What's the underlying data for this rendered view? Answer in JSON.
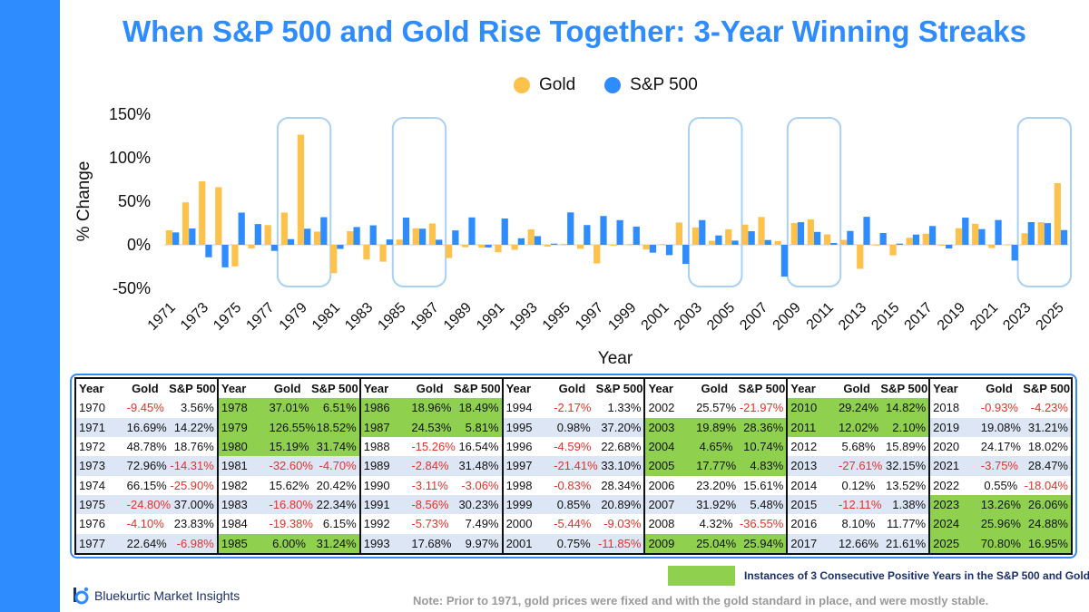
{
  "title": "When S&P 500 and Gold Rise Together: 3-Year Winning Streaks",
  "colors": {
    "gold": "#fcc24c",
    "sp500": "#2f8cff",
    "highlight": "#8fd14f",
    "negative": "#e8302a",
    "accent": "#2f8cff"
  },
  "chart_data": {
    "type": "bar",
    "title": "When S&P 500 and Gold Rise Together: 3-Year Winning Streaks",
    "xlabel": "Year",
    "ylabel": "% Change",
    "ylim": [
      -50,
      150
    ],
    "yticks": [
      "150%",
      "100%",
      "50%",
      "0%",
      "-50%"
    ],
    "ytick_values": [
      150,
      100,
      50,
      0,
      -50
    ],
    "xtick_labels": [
      "1971",
      "1973",
      "1975",
      "1977",
      "1979",
      "1981",
      "1983",
      "1985",
      "1987",
      "1989",
      "1991",
      "1993",
      "1995",
      "1997",
      "1999",
      "2001",
      "2003",
      "2005",
      "2007",
      "2009",
      "2011",
      "2013",
      "2015",
      "2017",
      "2019",
      "2021",
      "2023",
      "2025"
    ],
    "legend": [
      "Gold",
      "S&P 500"
    ],
    "legend_position": "top-center",
    "streak_windows": [
      [
        1978,
        1980
      ],
      [
        1985,
        1987
      ],
      [
        2003,
        2005
      ],
      [
        2009,
        2011
      ],
      [
        2023,
        2025
      ]
    ],
    "categories": [
      1971,
      1972,
      1973,
      1974,
      1975,
      1976,
      1977,
      1978,
      1979,
      1980,
      1981,
      1982,
      1983,
      1984,
      1985,
      1986,
      1987,
      1988,
      1989,
      1990,
      1991,
      1992,
      1993,
      1994,
      1995,
      1996,
      1997,
      1998,
      1999,
      2000,
      2001,
      2002,
      2003,
      2004,
      2005,
      2006,
      2007,
      2008,
      2009,
      2010,
      2011,
      2012,
      2013,
      2014,
      2015,
      2016,
      2017,
      2018,
      2019,
      2020,
      2021,
      2022,
      2023,
      2024,
      2025
    ],
    "series": [
      {
        "name": "Gold",
        "values": [
          16.69,
          48.78,
          72.96,
          66.15,
          -24.8,
          -4.1,
          22.64,
          37.01,
          126.55,
          15.19,
          -32.6,
          15.62,
          -16.8,
          -19.38,
          6.0,
          18.96,
          24.53,
          -15.26,
          -2.84,
          -3.11,
          -8.56,
          -5.73,
          17.68,
          -2.17,
          0.98,
          -4.59,
          -21.41,
          -0.83,
          0.85,
          -5.44,
          0.75,
          25.57,
          19.89,
          4.65,
          17.77,
          23.2,
          31.92,
          4.32,
          25.04,
          29.24,
          12.02,
          5.68,
          -27.61,
          0.12,
          -12.11,
          8.1,
          12.66,
          -0.93,
          19.08,
          24.17,
          -3.75,
          0.55,
          13.26,
          25.96,
          70.8
        ]
      },
      {
        "name": "S&P 500",
        "values": [
          14.22,
          18.76,
          -14.31,
          -25.9,
          37.0,
          23.83,
          -6.98,
          6.51,
          18.52,
          31.74,
          -4.7,
          20.42,
          22.34,
          6.15,
          31.24,
          18.49,
          5.81,
          16.54,
          31.48,
          -3.06,
          30.23,
          7.49,
          9.97,
          1.33,
          37.2,
          22.68,
          33.1,
          28.34,
          20.89,
          -9.03,
          -11.85,
          -21.97,
          28.36,
          10.74,
          4.83,
          15.61,
          5.48,
          -36.55,
          25.94,
          14.82,
          2.1,
          15.89,
          32.15,
          13.52,
          1.38,
          11.77,
          21.61,
          -4.23,
          31.21,
          18.02,
          28.47,
          -18.04,
          26.06,
          24.88,
          16.95
        ]
      }
    ]
  },
  "table": {
    "headers": [
      "Year",
      "Gold",
      "S&P 500"
    ],
    "groups": [
      {
        "rows": [
          {
            "year": "1970",
            "gold": "-9.45%",
            "sp": "3.56%"
          },
          {
            "year": "1971",
            "gold": "16.69%",
            "sp": "14.22%"
          },
          {
            "year": "1972",
            "gold": "48.78%",
            "sp": "18.76%"
          },
          {
            "year": "1973",
            "gold": "72.96%",
            "sp": "-14.31%"
          },
          {
            "year": "1974",
            "gold": "66.15%",
            "sp": "-25.90%"
          },
          {
            "year": "1975",
            "gold": "-24.80%",
            "sp": "37.00%"
          },
          {
            "year": "1976",
            "gold": "-4.10%",
            "sp": "23.83%"
          },
          {
            "year": "1977",
            "gold": "22.64%",
            "sp": "-6.98%"
          }
        ]
      },
      {
        "rows": [
          {
            "year": "1978",
            "gold": "37.01%",
            "sp": "6.51%",
            "hl": true
          },
          {
            "year": "1979",
            "gold": "126.55%",
            "sp": "18.52%",
            "hl": true
          },
          {
            "year": "1980",
            "gold": "15.19%",
            "sp": "31.74%",
            "hl": true
          },
          {
            "year": "1981",
            "gold": "-32.60%",
            "sp": "-4.70%"
          },
          {
            "year": "1982",
            "gold": "15.62%",
            "sp": "20.42%"
          },
          {
            "year": "1983",
            "gold": "-16.80%",
            "sp": "22.34%"
          },
          {
            "year": "1984",
            "gold": "-19.38%",
            "sp": "6.15%"
          },
          {
            "year": "1985",
            "gold": "6.00%",
            "sp": "31.24%",
            "hl": true
          }
        ]
      },
      {
        "rows": [
          {
            "year": "1986",
            "gold": "18.96%",
            "sp": "18.49%",
            "hl": true
          },
          {
            "year": "1987",
            "gold": "24.53%",
            "sp": "5.81%",
            "hl": true
          },
          {
            "year": "1988",
            "gold": "-15.26%",
            "sp": "16.54%"
          },
          {
            "year": "1989",
            "gold": "-2.84%",
            "sp": "31.48%"
          },
          {
            "year": "1990",
            "gold": "-3.11%",
            "sp": "-3.06%"
          },
          {
            "year": "1991",
            "gold": "-8.56%",
            "sp": "30.23%"
          },
          {
            "year": "1992",
            "gold": "-5.73%",
            "sp": "7.49%"
          },
          {
            "year": "1993",
            "gold": "17.68%",
            "sp": "9.97%"
          }
        ]
      },
      {
        "rows": [
          {
            "year": "1994",
            "gold": "-2.17%",
            "sp": "1.33%"
          },
          {
            "year": "1995",
            "gold": "0.98%",
            "sp": "37.20%"
          },
          {
            "year": "1996",
            "gold": "-4.59%",
            "sp": "22.68%"
          },
          {
            "year": "1997",
            "gold": "-21.41%",
            "sp": "33.10%"
          },
          {
            "year": "1998",
            "gold": "-0.83%",
            "sp": "28.34%"
          },
          {
            "year": "1999",
            "gold": "0.85%",
            "sp": "20.89%"
          },
          {
            "year": "2000",
            "gold": "-5.44%",
            "sp": "-9.03%"
          },
          {
            "year": "2001",
            "gold": "0.75%",
            "sp": "-11.85%"
          }
        ]
      },
      {
        "rows": [
          {
            "year": "2002",
            "gold": "25.57%",
            "sp": "-21.97%"
          },
          {
            "year": "2003",
            "gold": "19.89%",
            "sp": "28.36%",
            "hl": true
          },
          {
            "year": "2004",
            "gold": "4.65%",
            "sp": "10.74%",
            "hl": true
          },
          {
            "year": "2005",
            "gold": "17.77%",
            "sp": "4.83%",
            "hl": true
          },
          {
            "year": "2006",
            "gold": "23.20%",
            "sp": "15.61%"
          },
          {
            "year": "2007",
            "gold": "31.92%",
            "sp": "5.48%"
          },
          {
            "year": "2008",
            "gold": "4.32%",
            "sp": "-36.55%"
          },
          {
            "year": "2009",
            "gold": "25.04%",
            "sp": "25.94%",
            "hl": true
          }
        ]
      },
      {
        "rows": [
          {
            "year": "2010",
            "gold": "29.24%",
            "sp": "14.82%",
            "hl": true
          },
          {
            "year": "2011",
            "gold": "12.02%",
            "sp": "2.10%",
            "hl": true
          },
          {
            "year": "2012",
            "gold": "5.68%",
            "sp": "15.89%"
          },
          {
            "year": "2013",
            "gold": "-27.61%",
            "sp": "32.15%"
          },
          {
            "year": "2014",
            "gold": "0.12%",
            "sp": "13.52%"
          },
          {
            "year": "2015",
            "gold": "-12.11%",
            "sp": "1.38%"
          },
          {
            "year": "2016",
            "gold": "8.10%",
            "sp": "11.77%"
          },
          {
            "year": "2017",
            "gold": "12.66%",
            "sp": "21.61%"
          }
        ]
      },
      {
        "rows": [
          {
            "year": "2018",
            "gold": "-0.93%",
            "sp": "-4.23%"
          },
          {
            "year": "2019",
            "gold": "19.08%",
            "sp": "31.21%"
          },
          {
            "year": "2020",
            "gold": "24.17%",
            "sp": "18.02%"
          },
          {
            "year": "2021",
            "gold": "-3.75%",
            "sp": "28.47%"
          },
          {
            "year": "2022",
            "gold": "0.55%",
            "sp": "-18.04%"
          },
          {
            "year": "2023",
            "gold": "13.26%",
            "sp": "26.06%",
            "hl": true
          },
          {
            "year": "2024",
            "gold": "25.96%",
            "sp": "24.88%",
            "hl": true
          },
          {
            "year": "2025",
            "gold": "70.80%",
            "sp": "16.95%",
            "hl": true
          }
        ]
      }
    ]
  },
  "key_text": "Instances of 3 Consecutive Positive Years in the S&P 500 and Gold",
  "brand": "Bluekurtic Market Insights",
  "note": "Note: Prior to 1971, gold prices were fixed and with the gold standard in place, and were mostly stable."
}
